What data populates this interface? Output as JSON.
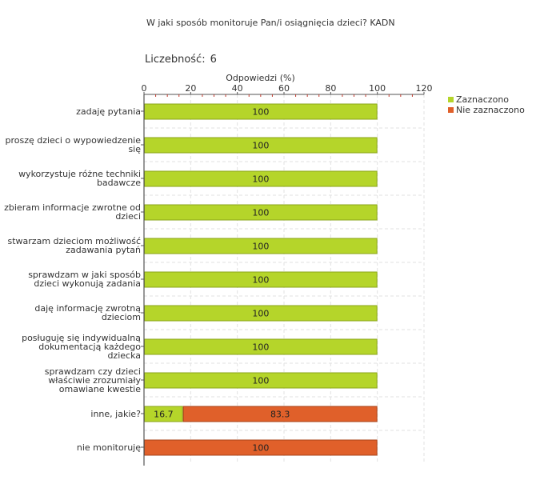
{
  "header": {
    "title": "W jaki sposób monitoruje Pan/i osiągnięcia dzieci?  KADN",
    "count_label": "Liczebność:",
    "count_value": "6"
  },
  "chart_data": {
    "type": "bar",
    "orientation": "horizontal",
    "stacked": true,
    "xlabel": "Odpowiedzi (%)",
    "xlim": [
      0,
      120
    ],
    "xticks": [
      0,
      20,
      40,
      60,
      80,
      100,
      120
    ],
    "grid": true,
    "legend_position": "top-right",
    "categories": [
      "zadaję pytania",
      "proszę dzieci o wypowiedzenie się",
      "wykorzystuje różne techniki badawcze",
      "zbieram informacje zwrotne od dzieci",
      "stwarzam dzieciom możliwość zadawania pytań",
      "sprawdzam w jaki sposób dzieci wykonują zadania",
      "daję informację zwrotną dzieciom",
      "posługuję się indywidualną dokumentacją każdego dziecka",
      "sprawdzam czy dzieci właściwie zrozumiały omawiane kwestie",
      "inne, jakie?",
      "nie monitoruję"
    ],
    "series": [
      {
        "name": "Zaznaczono",
        "color": "#b5d52a",
        "values": [
          100,
          100,
          100,
          100,
          100,
          100,
          100,
          100,
          100,
          16.7,
          0
        ]
      },
      {
        "name": "Nie zaznaczono",
        "color": "#e0602a",
        "values": [
          0,
          0,
          0,
          0,
          0,
          0,
          0,
          0,
          0,
          83.3,
          100
        ]
      }
    ]
  }
}
